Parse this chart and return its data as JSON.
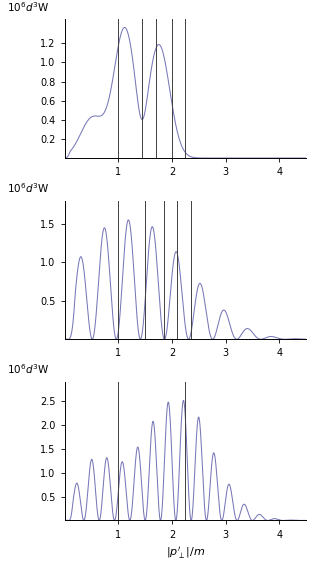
{
  "panels": [
    {
      "ylim": [
        0,
        1.45
      ],
      "yticks": [
        0.2,
        0.4,
        0.6,
        0.8,
        1.0,
        1.2
      ],
      "vlines": [
        1.0,
        1.45,
        1.7,
        2.0,
        2.25
      ],
      "ylabel": "$10^6 d^3$W",
      "xlabel": ""
    },
    {
      "ylim": [
        0,
        1.8
      ],
      "yticks": [
        0.5,
        1.0,
        1.5
      ],
      "vlines": [
        1.0,
        1.5,
        1.85,
        2.1,
        2.35
      ],
      "ylabel": "$10^6 d^3$W",
      "xlabel": ""
    },
    {
      "ylim": [
        0,
        2.9
      ],
      "yticks": [
        0.5,
        1.0,
        1.5,
        2.0,
        2.5
      ],
      "vlines": [
        1.0,
        2.25
      ],
      "ylabel": "$10^6 d^3$W",
      "xlabel": "$|p^{\\prime}_{\\perp}|/m$"
    }
  ],
  "xlim": [
    0,
    4.5
  ],
  "xticks": [
    1,
    2,
    3,
    4
  ],
  "line_color": "#7878b8",
  "vline_color": "#404040",
  "bg_color": "#ffffff",
  "figsize": [
    3.13,
    5.68
  ],
  "dpi": 100
}
